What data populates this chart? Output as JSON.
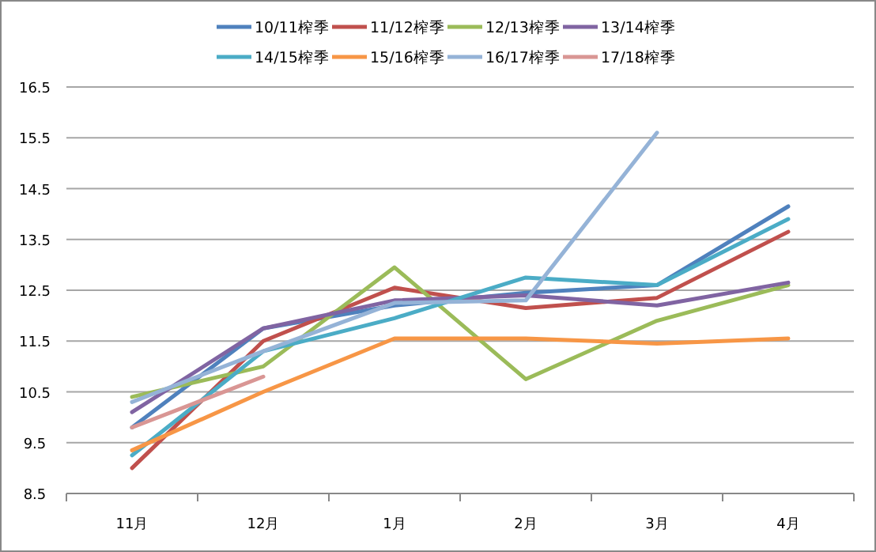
{
  "chart_data": {
    "type": "line",
    "categories": [
      "11月",
      "12月",
      "1月",
      "2月",
      "3月",
      "4月"
    ],
    "ylim": [
      8.5,
      16.5
    ],
    "yticks": [
      8.5,
      9.5,
      10.5,
      11.5,
      12.5,
      13.5,
      14.5,
      15.5,
      16.5
    ],
    "grid": "y",
    "legend": "top",
    "marker": "none",
    "line_style": "solid",
    "series": [
      {
        "name": "10/11榨季",
        "color": "#4f81bd",
        "values": [
          9.8,
          11.75,
          12.2,
          12.45,
          12.6,
          14.15
        ]
      },
      {
        "name": "11/12榨季",
        "color": "#c0504d",
        "values": [
          9.0,
          11.5,
          12.55,
          12.15,
          12.35,
          13.65
        ]
      },
      {
        "name": "12/13榨季",
        "color": "#9bbb59",
        "values": [
          10.4,
          11.0,
          12.95,
          10.75,
          11.9,
          12.6
        ]
      },
      {
        "name": "13/14榨季",
        "color": "#8064a2",
        "values": [
          10.1,
          11.75,
          12.3,
          12.4,
          12.2,
          12.65
        ]
      },
      {
        "name": "14/15榨季",
        "color": "#4bacc6",
        "values": [
          9.25,
          11.3,
          11.95,
          12.75,
          12.6,
          13.9
        ]
      },
      {
        "name": "15/16榨季",
        "color": "#f79646",
        "values": [
          9.35,
          10.5,
          11.55,
          11.55,
          11.45,
          11.55
        ]
      },
      {
        "name": "16/17榨季",
        "color": "#95b3d7",
        "values": [
          10.3,
          11.3,
          12.25,
          12.3,
          15.6,
          null
        ]
      },
      {
        "name": "17/18榨季",
        "color": "#d99694",
        "values": [
          9.8,
          10.8,
          null,
          null,
          null,
          null
        ]
      }
    ]
  }
}
